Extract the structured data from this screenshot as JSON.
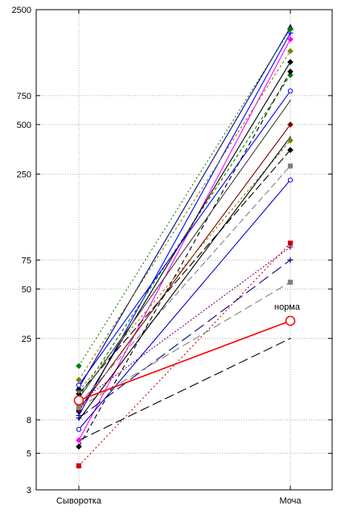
{
  "chart_data": {
    "type": "line",
    "title": "",
    "xlabel": "",
    "ylabel": "",
    "categories": [
      "Сыворотка",
      "Моча"
    ],
    "y_scale": "log",
    "ylim": [
      3,
      2500
    ],
    "y_ticks": [
      {
        "value": 3,
        "label": "3"
      },
      {
        "value": 5,
        "label": "5"
      },
      {
        "value": 8,
        "label": "8"
      },
      {
        "value": 25,
        "label": "25"
      },
      {
        "value": 50,
        "label": "50"
      },
      {
        "value": 75,
        "label": "75"
      },
      {
        "value": 250,
        "label": "250"
      },
      {
        "value": 500,
        "label": "500"
      },
      {
        "value": 750,
        "label": "750"
      },
      {
        "value": 2500,
        "label": "2500"
      }
    ],
    "grid": true,
    "annotation": {
      "text": "норма",
      "series_index": 0
    },
    "series": [
      {
        "values": [
          10.5,
          32
        ],
        "color": "#ff0000",
        "dash": "solid",
        "marker": "circle-large",
        "width": 1.6
      },
      {
        "values": [
          4.2,
          95
        ],
        "color": "#cc0000",
        "dash": "2,3",
        "marker": "square"
      },
      {
        "values": [
          6,
          25
        ],
        "color": "#000000",
        "dash": "12,5",
        "marker": "none"
      },
      {
        "values": [
          6,
          1650
        ],
        "color": "#ff00ff",
        "dash": "solid",
        "marker": "diamond"
      },
      {
        "values": [
          7,
          230
        ],
        "color": "#0000cc",
        "dash": "solid",
        "marker": "circle"
      },
      {
        "values": [
          8.2,
          75
        ],
        "color": "#000080",
        "dash": "14,6",
        "marker": "plus"
      },
      {
        "values": [
          8.5,
          1800
        ],
        "color": "#0000ff",
        "dash": "solid",
        "marker": "plus"
      },
      {
        "values": [
          9,
          1200
        ],
        "color": "#000000",
        "dash": "solid",
        "marker": "diamond"
      },
      {
        "values": [
          9.2,
          500
        ],
        "color": "#800000",
        "dash": "solid",
        "marker": "diamond"
      },
      {
        "values": [
          9.5,
          55
        ],
        "color": "#808080",
        "dash": "10,5",
        "marker": "square"
      },
      {
        "values": [
          10,
          280
        ],
        "color": "#808080",
        "dash": "8,4",
        "marker": "square"
      },
      {
        "values": [
          11,
          1000
        ],
        "color": "#008000",
        "dash": "4,3",
        "marker": "diamond"
      },
      {
        "values": [
          11.5,
          350
        ],
        "color": "#000000",
        "dash": "10,4",
        "marker": "diamond"
      },
      {
        "values": [
          12,
          400
        ],
        "color": "#808000",
        "dash": "3,3",
        "marker": "diamond"
      },
      {
        "values": [
          12.5,
          1950
        ],
        "color": "#000080",
        "dash": "solid",
        "marker": "triangle"
      },
      {
        "values": [
          13,
          800
        ],
        "color": "#0000ff",
        "dash": "solid",
        "marker": "circle"
      },
      {
        "values": [
          14,
          1400
        ],
        "color": "#808000",
        "dash": "3,3",
        "marker": "diamond"
      },
      {
        "values": [
          17,
          1900
        ],
        "color": "#008000",
        "dash": "2,3",
        "marker": "diamond"
      },
      {
        "values": [
          5.5,
          1050
        ],
        "color": "#000000",
        "dash": "6,4",
        "marker": "diamond"
      },
      {
        "values": [
          10.2,
          90
        ],
        "color": "#800080",
        "dash": "2,2",
        "marker": "plus"
      },
      {
        "values": [
          8,
          420
        ],
        "color": "#000000",
        "dash": "solid",
        "marker": "none"
      },
      {
        "values": [
          10.8,
          700
        ],
        "color": "#404040",
        "dash": "solid",
        "marker": "none"
      }
    ]
  }
}
